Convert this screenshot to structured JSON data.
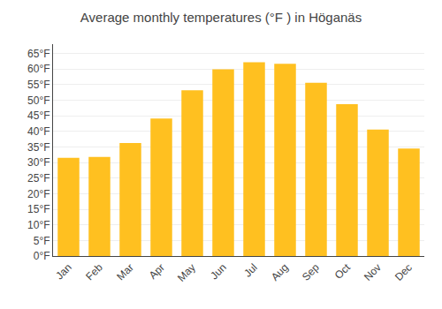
{
  "chart_data": {
    "type": "bar",
    "title": "Average monthly temperatures (°F ) in Höganäs",
    "categories": [
      "Jan",
      "Feb",
      "Mar",
      "Apr",
      "May",
      "Jun",
      "Jul",
      "Aug",
      "Sep",
      "Oct",
      "Nov",
      "Dec"
    ],
    "values": [
      31.5,
      31.8,
      36.3,
      44.1,
      53.2,
      59.9,
      62.2,
      61.7,
      55.6,
      48.7,
      40.6,
      34.5
    ],
    "color": "#FFC020",
    "ylim": [
      0,
      68
    ],
    "yticks": [
      {
        "value": 0,
        "label": "0°F"
      },
      {
        "value": 5,
        "label": "5°F"
      },
      {
        "value": 10,
        "label": "10°F"
      },
      {
        "value": 15,
        "label": "15°F"
      },
      {
        "value": 20,
        "label": "20°F"
      },
      {
        "value": 25,
        "label": "25°F"
      },
      {
        "value": 30,
        "label": "30°F"
      },
      {
        "value": 35,
        "label": "35°F"
      },
      {
        "value": 40,
        "label": "40°F"
      },
      {
        "value": 45,
        "label": "45°F"
      },
      {
        "value": 50,
        "label": "50°F"
      },
      {
        "value": 55,
        "label": "55°F"
      },
      {
        "value": 60,
        "label": "60°F"
      },
      {
        "value": 65,
        "label": "65°F"
      }
    ],
    "grid": true
  }
}
